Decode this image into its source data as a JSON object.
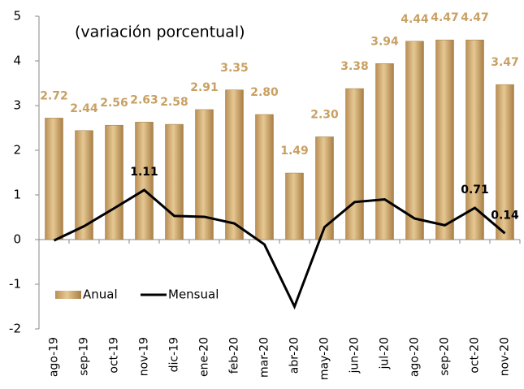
{
  "chart_data": {
    "type": "bar_line",
    "annotation": "(variación porcentual)",
    "categories": [
      "ago-19",
      "sep-19",
      "oct-19",
      "nov-19",
      "dic-19",
      "ene-20",
      "feb-20",
      "mar-20",
      "abr-20",
      "may-20",
      "jun-20",
      "jul-20",
      "ago-20",
      "sep-20",
      "oct-20",
      "nov-20"
    ],
    "series": [
      {
        "name": "Anual",
        "type": "bar",
        "color": "#d2ad74",
        "values": [
          2.72,
          2.44,
          2.56,
          2.63,
          2.58,
          2.91,
          3.35,
          2.8,
          1.49,
          2.3,
          3.38,
          3.94,
          4.44,
          4.47,
          4.47,
          3.47
        ],
        "value_labels": [
          "2.72",
          "2.44",
          "2.56",
          "2.63",
          "2.58",
          "2.91",
          "3.35",
          "2.80",
          "1.49",
          "2.30",
          "3.38",
          "3.94",
          "4.44",
          "4.47",
          "4.47",
          "3.47"
        ]
      },
      {
        "name": "Mensual",
        "type": "line",
        "color": "#000000",
        "values": [
          -0.02,
          0.3,
          0.7,
          1.11,
          0.53,
          0.51,
          0.36,
          -0.11,
          -1.5,
          0.28,
          0.84,
          0.9,
          0.47,
          0.32,
          0.71,
          0.14
        ],
        "value_labels": [
          null,
          null,
          null,
          "1.11",
          null,
          null,
          null,
          null,
          null,
          null,
          null,
          null,
          null,
          null,
          "0.71",
          "0.14"
        ]
      }
    ],
    "ylim": [
      -2,
      5
    ],
    "yticks": [
      -2,
      -1,
      0,
      1,
      2,
      3,
      4,
      5
    ],
    "grid": false
  }
}
